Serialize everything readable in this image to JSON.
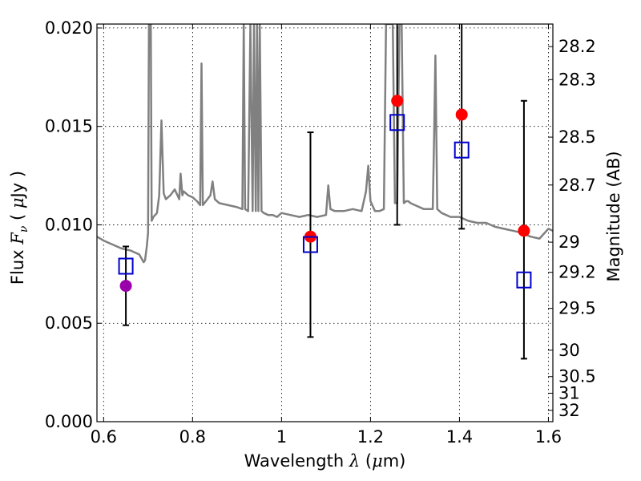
{
  "chart_data": {
    "type": "scatter",
    "xlabel": {
      "prefix": "Wavelength",
      "symbol": "λ",
      "unit_open": " (",
      "unit_mu": "μ",
      "unit_rest": "m)"
    },
    "ylabel": {
      "prefix": "Flux",
      "symbol": "F",
      "sub": "ν",
      "unit_open": " ( ",
      "unit_mu": "μ",
      "unit_rest": "Jy )"
    },
    "y2label": "Magnitude (AB)",
    "xlim": [
      0.585,
      1.61
    ],
    "ylim": [
      0.0,
      0.0202
    ],
    "grid": true,
    "x_ticks": [
      0.6,
      0.8,
      1.0,
      1.2,
      1.4,
      1.6
    ],
    "x_tick_labels": [
      "0.6",
      "0.8",
      "1",
      "1.2",
      "1.4",
      "1.6"
    ],
    "y_ticks": [
      0.0,
      0.005,
      0.01,
      0.015,
      0.02
    ],
    "y_tick_labels": [
      "0.000",
      "0.005",
      "0.010",
      "0.015",
      "0.020"
    ],
    "mag_ticks": [
      28.2,
      28.3,
      28.5,
      28.7,
      29,
      29.2,
      29.5,
      30,
      30.5,
      31,
      32
    ],
    "mag_tick_labels": [
      "28.2",
      "28.3",
      "28.5",
      "28.7",
      "29",
      "29.2",
      "29.5",
      "30",
      "30.5",
      "31",
      "32"
    ],
    "series": [
      {
        "kind": "model_spectrum",
        "color": "#808080",
        "x": [
          0.585,
          0.6,
          0.62,
          0.64,
          0.66,
          0.68,
          0.69,
          0.693,
          0.697,
          0.7,
          0.702,
          0.704,
          0.706,
          0.708,
          0.712,
          0.72,
          0.725,
          0.73,
          0.735,
          0.74,
          0.75,
          0.76,
          0.77,
          0.773,
          0.777,
          0.78,
          0.79,
          0.8,
          0.81,
          0.817,
          0.82,
          0.823,
          0.83,
          0.84,
          0.845,
          0.85,
          0.86,
          0.88,
          0.9,
          0.912,
          0.915,
          0.918,
          0.925,
          0.93,
          0.935,
          0.938,
          0.942,
          0.945,
          0.948,
          0.951,
          0.955,
          0.96,
          0.97,
          0.98,
          0.99,
          1.0,
          1.02,
          1.04,
          1.06,
          1.08,
          1.1,
          1.105,
          1.11,
          1.12,
          1.14,
          1.16,
          1.18,
          1.19,
          1.195,
          1.2,
          1.21,
          1.22,
          1.23,
          1.235,
          1.24,
          1.245,
          1.25,
          1.255,
          1.26,
          1.265,
          1.27,
          1.275,
          1.28,
          1.285,
          1.29,
          1.3,
          1.32,
          1.34,
          1.343,
          1.346,
          1.35,
          1.36,
          1.38,
          1.4,
          1.42,
          1.44,
          1.46,
          1.48,
          1.5,
          1.52,
          1.54,
          1.56,
          1.58,
          1.6,
          1.61
        ],
        "y": [
          0.0094,
          0.0092,
          0.009,
          0.0088,
          0.0087,
          0.0085,
          0.0081,
          0.0082,
          0.0089,
          0.0096,
          0.0202,
          0.0202,
          0.0202,
          0.0102,
          0.0104,
          0.0106,
          0.0115,
          0.0153,
          0.0116,
          0.0113,
          0.0115,
          0.0118,
          0.0113,
          0.0126,
          0.0115,
          0.0117,
          0.0115,
          0.0114,
          0.0112,
          0.011,
          0.0182,
          0.011,
          0.0112,
          0.0115,
          0.0122,
          0.0113,
          0.0111,
          0.011,
          0.0109,
          0.0108,
          0.0202,
          0.0108,
          0.0107,
          0.0202,
          0.0107,
          0.0202,
          0.0107,
          0.0202,
          0.0107,
          0.0202,
          0.0107,
          0.0106,
          0.0105,
          0.0105,
          0.0104,
          0.0106,
          0.0105,
          0.0104,
          0.0105,
          0.0104,
          0.0105,
          0.012,
          0.0108,
          0.0107,
          0.0107,
          0.0108,
          0.0107,
          0.0117,
          0.013,
          0.0112,
          0.0107,
          0.0107,
          0.0108,
          0.0202,
          0.0202,
          0.0202,
          0.0202,
          0.0111,
          0.0111,
          0.0202,
          0.0202,
          0.0111,
          0.0112,
          0.0112,
          0.0111,
          0.011,
          0.0108,
          0.0108,
          0.0145,
          0.0186,
          0.0108,
          0.0106,
          0.0104,
          0.0104,
          0.0102,
          0.0101,
          0.0101,
          0.0099,
          0.0098,
          0.0097,
          0.0096,
          0.0094,
          0.0093,
          0.0098,
          0.0097
        ]
      },
      {
        "kind": "observed_points",
        "color_detect": "#ff0000",
        "color_first": "#9900aa",
        "x": [
          0.65,
          1.065,
          1.26,
          1.405,
          1.545
        ],
        "y": [
          0.0069,
          0.0094,
          0.0163,
          0.0156,
          0.0097
        ],
        "err_low": [
          0.0049,
          0.0043,
          0.01,
          0.0098,
          0.0032
        ],
        "err_high": [
          0.0089,
          0.0147,
          0.0202,
          0.0202,
          0.0163
        ]
      },
      {
        "kind": "model_points",
        "marker": "open-square",
        "color": "#0000cc",
        "x": [
          0.65,
          1.065,
          1.26,
          1.405,
          1.545
        ],
        "y": [
          0.0079,
          0.009,
          0.0152,
          0.0138,
          0.0072
        ]
      }
    ]
  }
}
